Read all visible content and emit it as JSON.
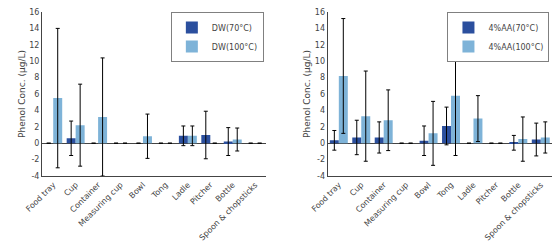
{
  "chart_data": [
    {
      "type": "bar",
      "categories": [
        "Food tray",
        "Cup",
        "Container",
        "Measuring cup",
        "Bowl",
        "Tong",
        "Ladle",
        "Pitcher",
        "Bottle",
        "Spoon & chopsticks"
      ],
      "ylabel": "Phenol Conc. (μg/L)",
      "series": [
        {
          "name": "DW(70°C)",
          "color": "#2b4f9e",
          "values": [
            0,
            0.6,
            0,
            0,
            0,
            0,
            0.9,
            1.0,
            0.2,
            0
          ],
          "errors": [
            0,
            2.1,
            0,
            0,
            0,
            0,
            1.2,
            2.9,
            1.7,
            0
          ]
        },
        {
          "name": "DW(100°C)",
          "color": "#7eb3d8",
          "values": [
            5.5,
            2.2,
            3.2,
            0,
            0.85,
            0,
            0.9,
            0,
            0.45,
            0
          ],
          "errors": [
            8.5,
            5.0,
            7.2,
            0,
            2.7,
            0,
            1.2,
            0,
            1.4,
            0
          ]
        }
      ],
      "ylim": [
        -4,
        16
      ],
      "yticks": [
        -4,
        -2,
        0,
        2,
        4,
        6,
        8,
        10,
        12,
        14,
        16
      ],
      "grid": false,
      "legend": "upper right"
    },
    {
      "type": "bar",
      "categories": [
        "Food tray",
        "Cup",
        "Container",
        "Measuring cup",
        "Bowl",
        "Tong",
        "Ladle",
        "Pitcher",
        "Bottle",
        "Spoon & chopsticks"
      ],
      "ylabel": "Phenol Conc. (μg/L)",
      "series": [
        {
          "name": "4%AA(70°C)",
          "color": "#2b4f9e",
          "values": [
            0.35,
            0.7,
            0.7,
            0,
            0.3,
            2.1,
            0,
            0,
            0.05,
            0.45
          ],
          "errors": [
            1.2,
            2.1,
            1.9,
            0,
            1.8,
            2.3,
            0,
            0,
            0.9,
            2.0
          ]
        },
        {
          "name": "4%AA(100°C)",
          "color": "#7eb3d8",
          "values": [
            8.2,
            3.3,
            2.8,
            0,
            1.2,
            5.8,
            3.0,
            0,
            0.5,
            0.7
          ],
          "errors": [
            7.0,
            5.5,
            3.7,
            0,
            3.9,
            7.3,
            2.8,
            0,
            2.7,
            1.9
          ]
        }
      ],
      "ylim": [
        -4,
        16
      ],
      "yticks": [
        -4,
        -2,
        0,
        2,
        4,
        6,
        8,
        10,
        12,
        14,
        16
      ],
      "grid": false,
      "legend": "upper right"
    }
  ]
}
